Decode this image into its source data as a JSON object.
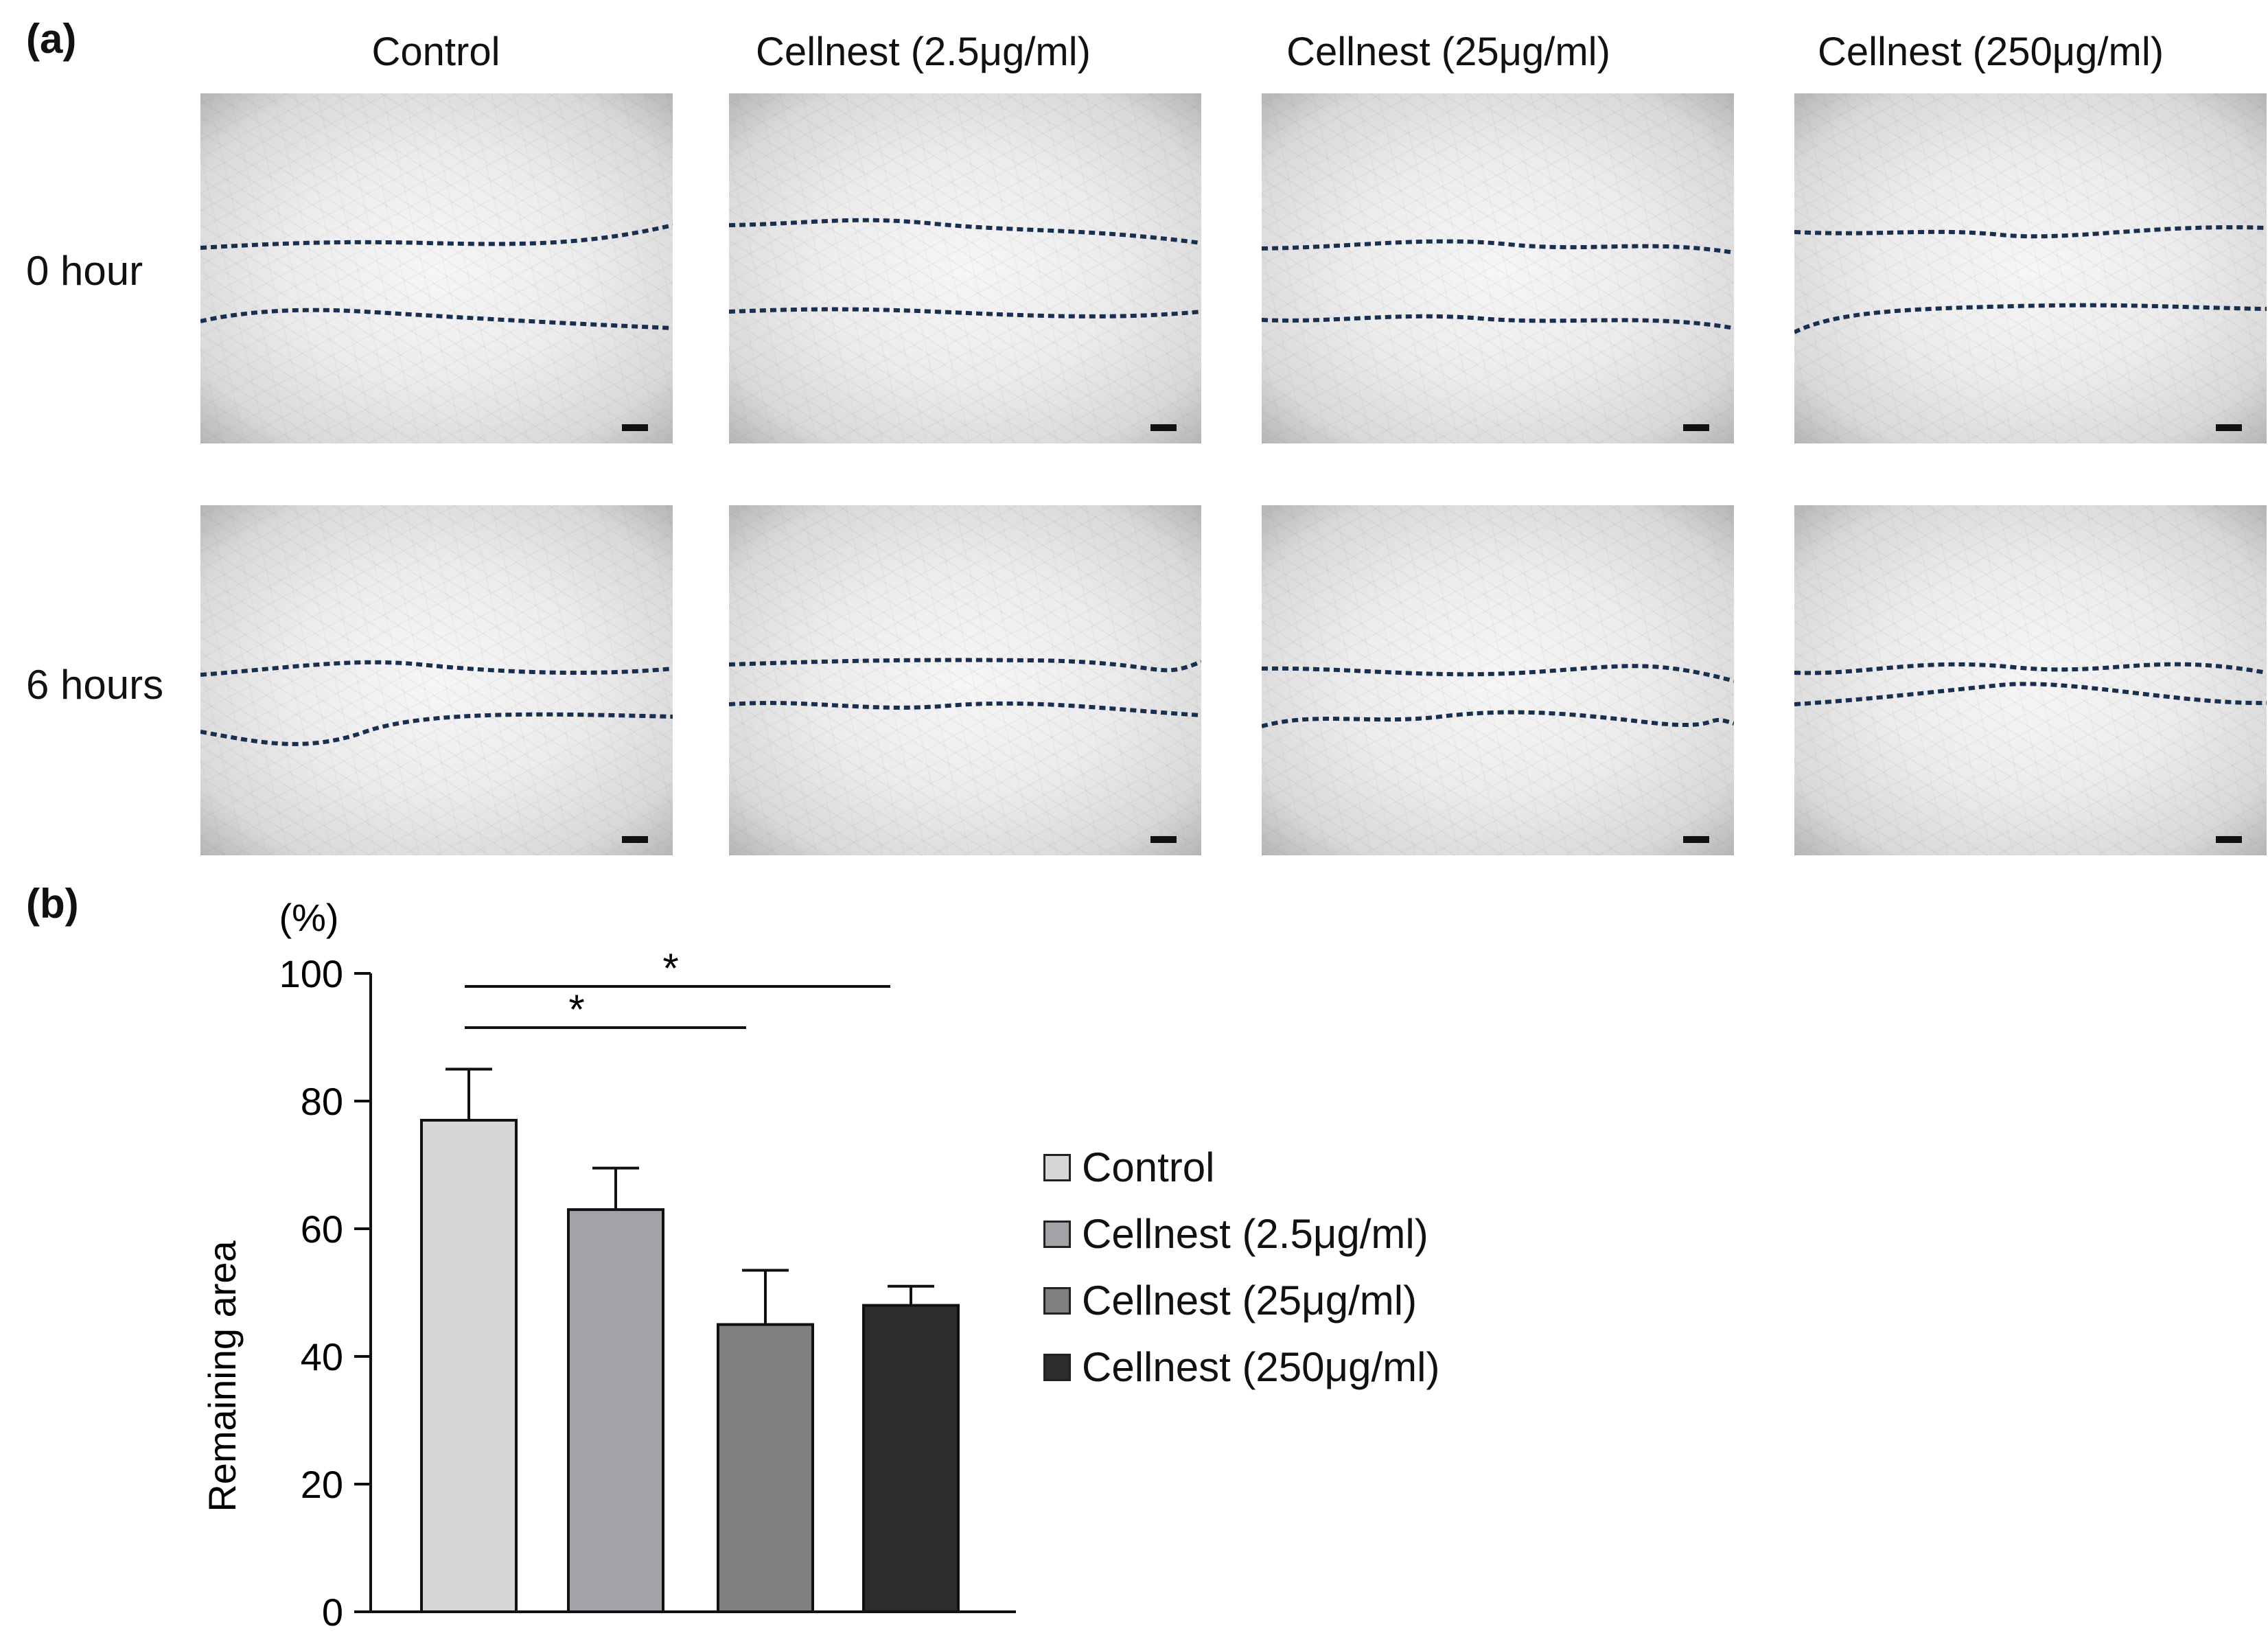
{
  "panel_a": {
    "label": "(a)",
    "columns": [
      "Control",
      "Cellnest (2.5μg/ml)",
      "Cellnest (25μg/ml)",
      "Cellnest (250μg/ml)"
    ],
    "rows": [
      "0 hour",
      "6 hours"
    ]
  },
  "panel_b": {
    "label": "(b)"
  },
  "colors": {
    "dotted_line": "#17304e",
    "bars": [
      "#d6d6d6",
      "#a3a2a7",
      "#808080",
      "#2c2c2c"
    ]
  },
  "chart_data": {
    "type": "bar",
    "categories": [
      "Control",
      "Cellnest (2.5μg/ml)",
      "Cellnest (25μg/ml)",
      "Cellnest (250μg/ml)"
    ],
    "values": [
      77,
      63,
      45,
      48
    ],
    "errors": [
      8,
      6.5,
      8.5,
      3
    ],
    "ylabel": "Remaining area",
    "yunit": "(%)",
    "ylim": [
      0,
      100
    ],
    "yticks": [
      0,
      20,
      40,
      60,
      80,
      100
    ],
    "significance": [
      {
        "from": "Control",
        "to": "Cellnest (25μg/ml)",
        "label": "*"
      },
      {
        "from": "Control",
        "to": "Cellnest (250μg/ml)",
        "label": "*"
      }
    ],
    "legend": [
      "Control",
      "Cellnest (2.5μg/ml)",
      "Cellnest (25μg/ml)",
      "Cellnest (250μg/ml)"
    ],
    "legend_position": "right"
  }
}
